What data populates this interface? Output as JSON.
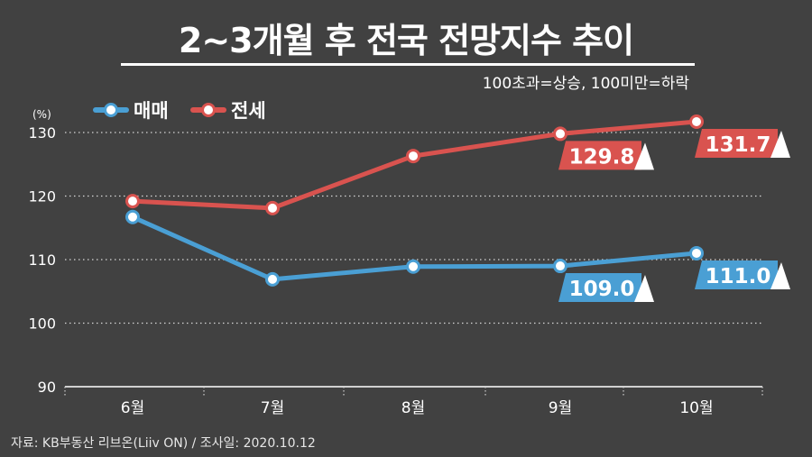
{
  "title": "2~3개월 후 전국 전망지수 추이",
  "subtitle": "100초과=상승, 100미만=하락",
  "source": "자료: KB부동산 리브온(Liiv ON)  / 조사일: 2020.10.12",
  "colors": {
    "background": "#414141",
    "sale": "#4a9fd4",
    "jeonse": "#d9534f",
    "grid": "#d8d8d8"
  },
  "chart_data": {
    "type": "line",
    "title": "2~3개월 후 전국 전망지수 추이",
    "subtitle": "100초과=상승, 100미만=하락",
    "ylabel": "(%)",
    "xlabel": "",
    "categories": [
      "6월",
      "7월",
      "8월",
      "9월",
      "10월"
    ],
    "ylim": [
      90,
      130
    ],
    "yticks": [
      "130",
      "120",
      "110",
      "100",
      "90"
    ],
    "legend": "top-left",
    "grid": true,
    "series": [
      {
        "name": "매매",
        "color": "#4a9fd4",
        "values": [
          116.7,
          106.9,
          108.9,
          109.0,
          111.0
        ]
      },
      {
        "name": "전세",
        "color": "#d9534f",
        "values": [
          119.2,
          118.1,
          126.3,
          129.8,
          131.7
        ]
      }
    ],
    "annotations": [
      {
        "series": "매매",
        "index": 3,
        "text": "109.0"
      },
      {
        "series": "매매",
        "index": 4,
        "text": "111.0"
      },
      {
        "series": "전세",
        "index": 3,
        "text": "129.8"
      },
      {
        "series": "전세",
        "index": 4,
        "text": "131.7"
      }
    ]
  }
}
